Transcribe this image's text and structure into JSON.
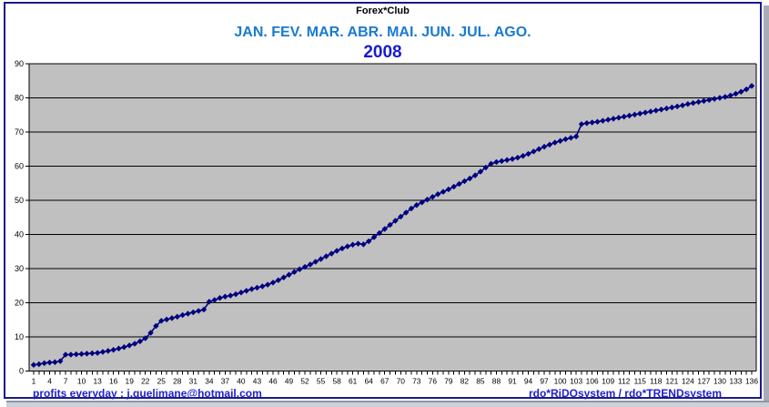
{
  "titles": {
    "club": "Forex*Club",
    "months": "JAN. FEV. MAR. ABR. MAI. JUN. JUL. AGO.",
    "year": "2008"
  },
  "footer": {
    "left": "profits everyday : j.quelimane@hotmail.com",
    "right": "rdo*RiDOsystem / rdo*TRENDsystem"
  },
  "colors": {
    "frame_border": "#1a1a8c",
    "plot_bg": "#c0c0c0",
    "gridline": "#000000",
    "axis": "#000000",
    "series": "#000080",
    "months_blue": "#1b7ad0",
    "year_blue": "#1a1acd",
    "footer_blue": "#2121cc",
    "window_edge_gray": "#a8acb6"
  },
  "chart_data": {
    "type": "line",
    "marker": "diamond",
    "title": "Forex*Club",
    "subtitle": "JAN. FEV. MAR. ABR. MAI. JUN. JUL. AGO.",
    "year_label": "2008",
    "x_range": [
      1,
      136
    ],
    "x_step": 1,
    "ylim": [
      0,
      90
    ],
    "grid": "horizontal",
    "legend": "none",
    "y_ticks": [
      0,
      10,
      20,
      30,
      40,
      50,
      60,
      70,
      80,
      90
    ],
    "x_tick_labels": [
      1,
      4,
      7,
      10,
      13,
      16,
      19,
      22,
      25,
      28,
      31,
      34,
      37,
      40,
      43,
      46,
      49,
      52,
      55,
      58,
      61,
      64,
      67,
      70,
      73,
      76,
      79,
      82,
      85,
      88,
      91,
      94,
      97,
      100,
      103,
      106,
      109,
      112,
      115,
      118,
      121,
      124,
      127,
      130,
      133,
      136
    ],
    "values": [
      1.8,
      2.0,
      2.3,
      2.5,
      2.6,
      2.9,
      4.8,
      4.8,
      4.9,
      5.0,
      5.1,
      5.2,
      5.3,
      5.6,
      5.9,
      6.2,
      6.6,
      7.0,
      7.5,
      8.0,
      8.7,
      9.6,
      11.2,
      13.2,
      14.7,
      15.1,
      15.5,
      15.9,
      16.4,
      16.8,
      17.2,
      17.6,
      18.0,
      20.3,
      20.8,
      21.4,
      21.8,
      22.1,
      22.5,
      23.0,
      23.5,
      24.0,
      24.4,
      24.8,
      25.3,
      25.9,
      26.6,
      27.4,
      28.2,
      29.0,
      29.8,
      30.5,
      31.2,
      32.0,
      32.8,
      33.6,
      34.4,
      35.2,
      35.9,
      36.5,
      37.0,
      37.3,
      37.1,
      38.0,
      39.2,
      40.4,
      41.6,
      42.8,
      44.0,
      45.2,
      46.4,
      47.6,
      48.6,
      49.4,
      50.2,
      51.0,
      51.8,
      52.5,
      53.2,
      54.0,
      54.8,
      55.6,
      56.4,
      57.3,
      58.4,
      59.6,
      60.7,
      61.2,
      61.5,
      61.8,
      62.1,
      62.5,
      63.0,
      63.6,
      64.3,
      65.0,
      65.7,
      66.3,
      66.9,
      67.4,
      67.9,
      68.3,
      68.7,
      72.3,
      72.6,
      72.8,
      73.0,
      73.3,
      73.6,
      73.9,
      74.2,
      74.5,
      74.8,
      75.1,
      75.4,
      75.7,
      76.0,
      76.3,
      76.6,
      76.9,
      77.2,
      77.5,
      77.8,
      78.2,
      78.5,
      78.8,
      79.1,
      79.4,
      79.7,
      80.0,
      80.3,
      80.7,
      81.2,
      81.8,
      82.5,
      83.5
    ]
  }
}
